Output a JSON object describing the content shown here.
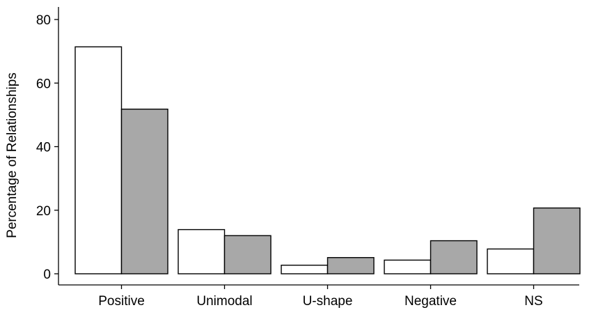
{
  "chart_data": {
    "type": "bar",
    "title": "",
    "xlabel": "",
    "ylabel": "Percentage of Relationships",
    "ylim": [
      0,
      80
    ],
    "yticks": [
      0,
      20,
      40,
      60,
      80
    ],
    "grid": false,
    "legend": "none",
    "categories": [
      "Positive",
      "Unimodal",
      "U-shape",
      "Negative",
      "NS"
    ],
    "series": [
      {
        "values": [
          71.4,
          13.9,
          2.7,
          4.3,
          7.8
        ],
        "color": "#ffffff"
      },
      {
        "values": [
          51.8,
          12.0,
          5.1,
          10.4,
          20.7
        ],
        "color": "#a8a8a8"
      }
    ]
  }
}
